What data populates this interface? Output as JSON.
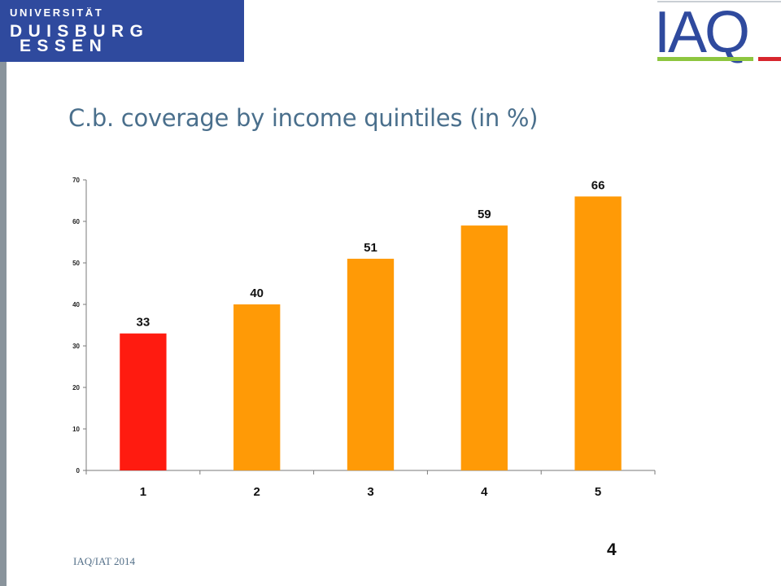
{
  "header": {
    "university_logo": {
      "line1": "UNIVERSITÄT",
      "line2": "DUISBURG",
      "line3": "ESSEN",
      "color": "#2f4a9e"
    },
    "institute_logo": {
      "text": "IAQ",
      "colors": [
        "#2f4a9e",
        "#8dc63f",
        "#d7262d"
      ]
    }
  },
  "slide": {
    "title": "C.b. coverage by income quintiles (in %)"
  },
  "chart_data": {
    "type": "bar",
    "categories": [
      "1",
      "2",
      "3",
      "4",
      "5"
    ],
    "values": [
      33,
      40,
      51,
      59,
      66
    ],
    "bar_colors": [
      "#ff1b10",
      "#ff9a06",
      "#ff9a06",
      "#ff9a06",
      "#ff9a06"
    ],
    "data_labels": [
      "33",
      "40",
      "51",
      "59",
      "66"
    ],
    "yticks": [
      0,
      10,
      20,
      30,
      40,
      50,
      60,
      70
    ],
    "ylim": [
      0,
      70
    ],
    "grid": false,
    "legend": "none",
    "title": "",
    "xlabel": "",
    "ylabel": ""
  },
  "footer": {
    "source": "IAQ/IAT 2014",
    "page_number": "4"
  }
}
